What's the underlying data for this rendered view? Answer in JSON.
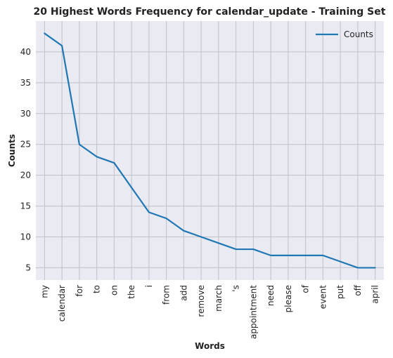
{
  "chart_data": {
    "type": "line",
    "title": "20 Highest Words Frequency for calendar_update - Training Set",
    "xlabel": "Words",
    "ylabel": "Counts",
    "categories": [
      "my",
      "calendar",
      "for",
      "to",
      "on",
      "the",
      "i",
      "from",
      "add",
      "remove",
      "march",
      "'s",
      "appointment",
      "need",
      "please",
      "of",
      "event",
      "put",
      "off",
      "april"
    ],
    "series": [
      {
        "name": "Counts",
        "values": [
          43,
          41,
          25,
          23,
          22,
          18,
          14,
          13,
          11,
          10,
          9,
          8,
          8,
          7,
          7,
          7,
          7,
          6,
          5,
          5
        ],
        "color": "#1f77b4"
      }
    ],
    "ylim": [
      3,
      45
    ],
    "yticks": [
      5,
      10,
      15,
      20,
      25,
      30,
      35,
      40
    ],
    "grid": true,
    "legend_position": "top-right",
    "background_color": "#eaeaf2",
    "grid_color": "#c0c0c8"
  }
}
